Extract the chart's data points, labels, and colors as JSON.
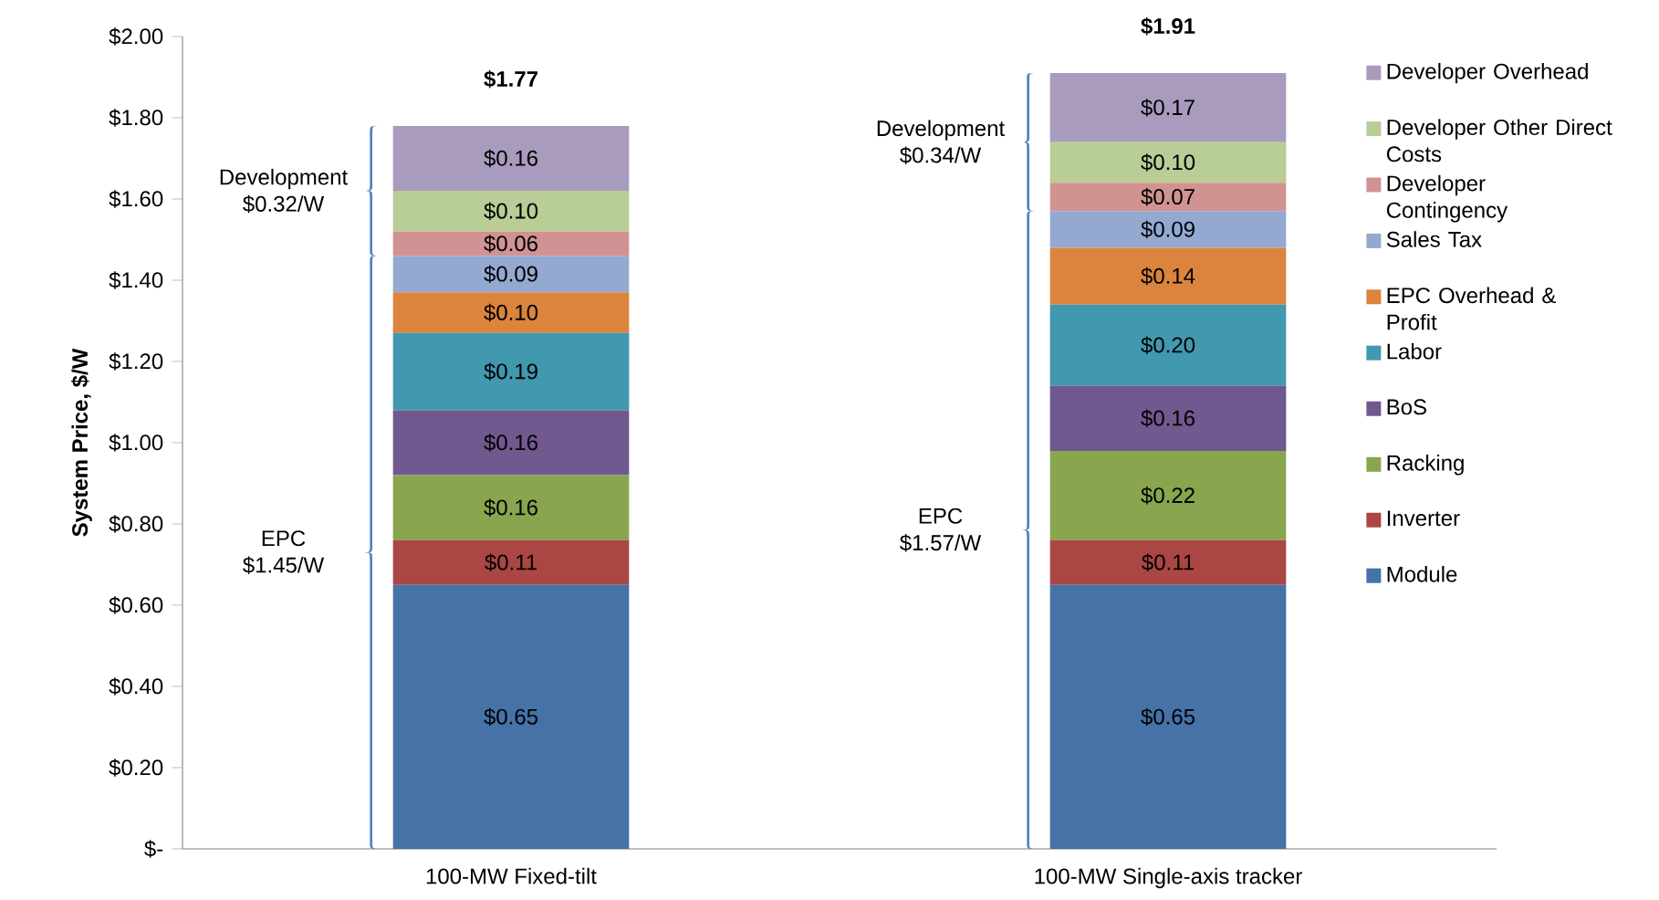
{
  "chart_data": {
    "type": "bar",
    "stacked": true,
    "ylabel": "System Price, $/W",
    "categories": [
      "100-MW Fixed-tilt",
      "100-MW Single-axis tracker"
    ],
    "series": [
      {
        "name": "Module",
        "color": "#4572a7",
        "values": [
          0.65,
          0.65
        ],
        "value_labels": [
          "$0.65",
          "$0.65"
        ]
      },
      {
        "name": "Inverter",
        "color": "#aa4643",
        "values": [
          0.11,
          0.11
        ],
        "value_labels": [
          "$0.11",
          "$0.11"
        ]
      },
      {
        "name": "Racking",
        "color": "#89a54e",
        "values": [
          0.16,
          0.22
        ],
        "value_labels": [
          "$0.16",
          "$0.22"
        ]
      },
      {
        "name": "BoS",
        "color": "#71588f",
        "values": [
          0.16,
          0.16
        ],
        "value_labels": [
          "$0.16",
          "$0.16"
        ]
      },
      {
        "name": "Labor",
        "color": "#4198af",
        "values": [
          0.19,
          0.2
        ],
        "value_labels": [
          "$0.19",
          "$0.20"
        ]
      },
      {
        "name": "EPC Overhead & Profit",
        "color": "#db843d",
        "values": [
          0.1,
          0.14
        ],
        "value_labels": [
          "$0.10",
          "$0.14"
        ]
      },
      {
        "name": "Sales Tax",
        "color": "#93a9cf",
        "values": [
          0.09,
          0.09
        ],
        "value_labels": [
          "$0.09",
          "$0.09"
        ]
      },
      {
        "name": "Developer Contingency",
        "color": "#d19392",
        "values": [
          0.06,
          0.07
        ],
        "value_labels": [
          "$0.06",
          "$0.07"
        ]
      },
      {
        "name": "Developer Other Direct Costs",
        "color": "#b9cd96",
        "values": [
          0.1,
          0.1
        ],
        "value_labels": [
          "$0.10",
          "$0.10"
        ]
      },
      {
        "name": "Developer Overhead",
        "color": "#a99bbd",
        "values": [
          0.16,
          0.17
        ],
        "value_labels": [
          "$0.16",
          "$0.17"
        ]
      }
    ],
    "totals": [
      "$1.77",
      "$1.91"
    ],
    "annotations": [
      "Development $0.32/W",
      "EPC $1.45/W",
      "Development $0.34/W",
      "EPC $1.57/W"
    ],
    "ylim": [
      0,
      2.0
    ],
    "yticks": [
      {
        "value": 0,
        "label": "$-"
      },
      {
        "value": 0.2,
        "label": "$0.20"
      },
      {
        "value": 0.4,
        "label": "$0.40"
      },
      {
        "value": 0.6,
        "label": "$0.60"
      },
      {
        "value": 0.8,
        "label": "$0.80"
      },
      {
        "value": 1.0,
        "label": "$1.00"
      },
      {
        "value": 1.2,
        "label": "$1.20"
      },
      {
        "value": 1.4,
        "label": "$1.40"
      },
      {
        "value": 1.6,
        "label": "$1.60"
      },
      {
        "value": 1.8,
        "label": "$1.80"
      },
      {
        "value": 2.0,
        "label": "$2.00"
      }
    ],
    "legend": "right"
  }
}
